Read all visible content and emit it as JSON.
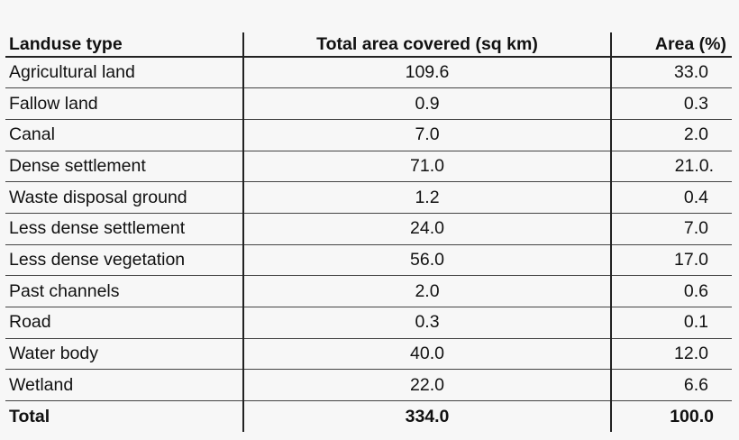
{
  "table": {
    "headers": [
      "Landuse type",
      "Total area covered (sq km)",
      "Area (%)"
    ],
    "rows": [
      [
        "Agricultural land",
        "109.6",
        "33.0"
      ],
      [
        "Fallow land",
        "0.9",
        "0.3"
      ],
      [
        "Canal",
        "7.0",
        "2.0"
      ],
      [
        "Dense settlement",
        "71.0",
        "21.0."
      ],
      [
        "Waste disposal ground",
        "1.2",
        "0.4"
      ],
      [
        "Less dense settlement",
        "24.0",
        "7.0"
      ],
      [
        "Less dense vegetation",
        "56.0",
        "17.0"
      ],
      [
        "Past channels",
        "2.0",
        "0.6"
      ],
      [
        "Road",
        "0.3",
        "0.1"
      ],
      [
        "Water body",
        "40.0",
        "12.0"
      ],
      [
        "Wetland",
        "22.0",
        "6.6"
      ]
    ],
    "total": [
      "Total",
      "334.0",
      "100.0"
    ]
  }
}
